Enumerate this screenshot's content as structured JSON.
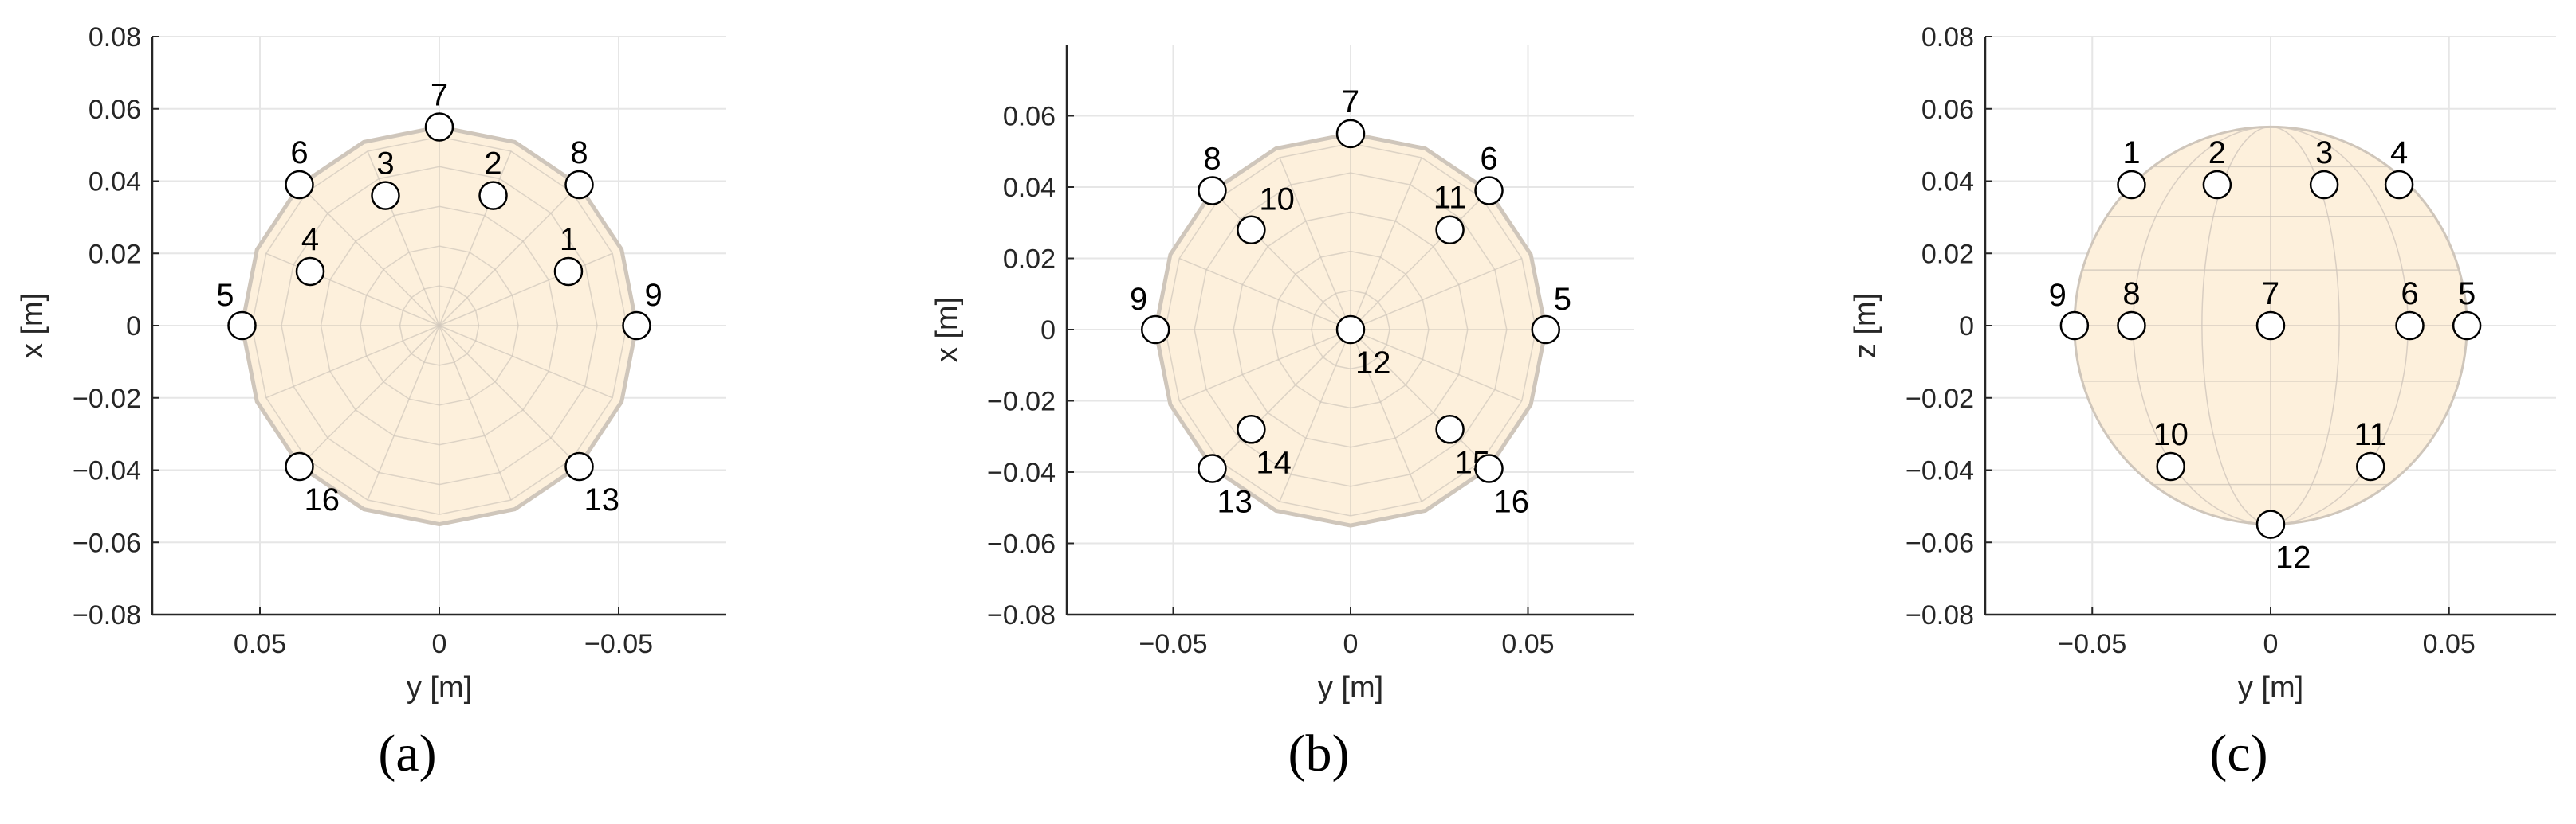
{
  "colors": {
    "sphere_fill": "#fdf0dc",
    "sphere_edge": "#cfc6bb",
    "grid": "#e6e6e6",
    "axis": "#262626",
    "marker_fill": "#ffffff",
    "marker_edge": "#000000"
  },
  "chart_data": [
    {
      "type": "scatter",
      "caption": "(a)",
      "title": "",
      "xlabel": "y [m]",
      "ylabel": "x [m]",
      "xlim": [
        0.08,
        -0.08
      ],
      "ylim": [
        -0.08,
        0.08
      ],
      "x_reversed": true,
      "xticks": [
        0.05,
        0,
        -0.05
      ],
      "xtick_labels": [
        "0.05",
        "0",
        "−0.05"
      ],
      "yticks": [
        0.08,
        0.06,
        0.04,
        0.02,
        0,
        -0.02,
        -0.04,
        -0.06,
        -0.08
      ],
      "ytick_labels": [
        "0.08",
        "0.06",
        "0.04",
        "0.02",
        "0",
        "−0.02",
        "−0.04",
        "−0.06",
        "−0.08"
      ],
      "grid": true,
      "background_shape": "sphere-top-view",
      "sphere_radius": 0.055,
      "points": [
        {
          "label": "7",
          "x": 0,
          "y": 0.055,
          "label_pos": "above"
        },
        {
          "label": "6",
          "x": 0.039,
          "y": 0.039,
          "label_pos": "above"
        },
        {
          "label": "8",
          "x": -0.039,
          "y": 0.039,
          "label_pos": "above"
        },
        {
          "label": "3",
          "x": 0.015,
          "y": 0.036,
          "label_pos": "above"
        },
        {
          "label": "2",
          "x": -0.015,
          "y": 0.036,
          "label_pos": "above"
        },
        {
          "label": "4",
          "x": 0.036,
          "y": 0.015,
          "label_pos": "above"
        },
        {
          "label": "1",
          "x": -0.036,
          "y": 0.015,
          "label_pos": "above"
        },
        {
          "label": "5",
          "x": 0.055,
          "y": 0,
          "label_pos": "above-left"
        },
        {
          "label": "9",
          "x": -0.055,
          "y": 0,
          "label_pos": "above-right"
        },
        {
          "label": "16",
          "x": 0.039,
          "y": -0.039,
          "label_pos": "below-right"
        },
        {
          "label": "13",
          "x": -0.039,
          "y": -0.039,
          "label_pos": "below-right"
        }
      ]
    },
    {
      "type": "scatter",
      "caption": "(b)",
      "title": "",
      "xlabel": "y [m]",
      "ylabel": "x [m]",
      "xlim": [
        -0.08,
        0.08
      ],
      "ylim": [
        -0.08,
        0.08
      ],
      "x_reversed": false,
      "xticks": [
        -0.05,
        0,
        0.05
      ],
      "xtick_labels": [
        "−0.05",
        "0",
        "0.05"
      ],
      "yticks": [
        0.06,
        0.04,
        0.02,
        0,
        -0.02,
        -0.04,
        -0.06,
        -0.08
      ],
      "ytick_labels": [
        "0.06",
        "0.04",
        "0.02",
        "0",
        "−0.02",
        "−0.04",
        "−0.06",
        "−0.08"
      ],
      "grid": true,
      "background_shape": "sphere-top-view",
      "sphere_radius": 0.055,
      "points": [
        {
          "label": "7",
          "x": 0,
          "y": 0.055,
          "label_pos": "above"
        },
        {
          "label": "8",
          "x": -0.039,
          "y": 0.039,
          "label_pos": "above"
        },
        {
          "label": "6",
          "x": 0.039,
          "y": 0.039,
          "label_pos": "above"
        },
        {
          "label": "10",
          "x": -0.028,
          "y": 0.028,
          "label_pos": "above-right"
        },
        {
          "label": "11",
          "x": 0.028,
          "y": 0.028,
          "label_pos": "above"
        },
        {
          "label": "9",
          "x": -0.055,
          "y": 0,
          "label_pos": "above-left"
        },
        {
          "label": "5",
          "x": 0.055,
          "y": 0,
          "label_pos": "above-right"
        },
        {
          "label": "12",
          "x": 0,
          "y": 0,
          "label_pos": "below-right"
        },
        {
          "label": "14",
          "x": -0.028,
          "y": -0.028,
          "label_pos": "below-right"
        },
        {
          "label": "15",
          "x": 0.028,
          "y": -0.028,
          "label_pos": "below-right"
        },
        {
          "label": "13",
          "x": -0.039,
          "y": -0.039,
          "label_pos": "below-right"
        },
        {
          "label": "16",
          "x": 0.039,
          "y": -0.039,
          "label_pos": "below-right"
        }
      ]
    },
    {
      "type": "scatter",
      "caption": "(c)",
      "title": "",
      "xlabel": "y [m]",
      "ylabel": "z [m]",
      "xlim": [
        -0.08,
        0.08
      ],
      "ylim": [
        -0.08,
        0.08
      ],
      "x_reversed": false,
      "xticks": [
        -0.05,
        0,
        0.05
      ],
      "xtick_labels": [
        "−0.05",
        "0",
        "0.05"
      ],
      "yticks": [
        0.08,
        0.06,
        0.04,
        0.02,
        0,
        -0.02,
        -0.04,
        -0.06,
        -0.08
      ],
      "ytick_labels": [
        "0.08",
        "0.06",
        "0.04",
        "0.02",
        "0",
        "−0.02",
        "−0.04",
        "−0.06",
        "−0.08"
      ],
      "grid": true,
      "background_shape": "sphere-side-view",
      "sphere_radius": 0.055,
      "points": [
        {
          "label": "1",
          "x": -0.039,
          "y": 0.039,
          "label_pos": "above"
        },
        {
          "label": "2",
          "x": -0.015,
          "y": 0.039,
          "label_pos": "above"
        },
        {
          "label": "3",
          "x": 0.015,
          "y": 0.039,
          "label_pos": "above"
        },
        {
          "label": "4",
          "x": 0.036,
          "y": 0.039,
          "label_pos": "above"
        },
        {
          "label": "9",
          "x": -0.055,
          "y": 0,
          "label_pos": "above-left"
        },
        {
          "label": "8",
          "x": -0.039,
          "y": 0,
          "label_pos": "above"
        },
        {
          "label": "7",
          "x": 0,
          "y": 0,
          "label_pos": "above"
        },
        {
          "label": "6",
          "x": 0.039,
          "y": 0,
          "label_pos": "above"
        },
        {
          "label": "5",
          "x": 0.055,
          "y": 0,
          "label_pos": "above"
        },
        {
          "label": "10",
          "x": -0.028,
          "y": -0.039,
          "label_pos": "above"
        },
        {
          "label": "11",
          "x": 0.028,
          "y": -0.039,
          "label_pos": "above"
        },
        {
          "label": "12",
          "x": 0,
          "y": -0.055,
          "label_pos": "below-right"
        }
      ]
    }
  ]
}
